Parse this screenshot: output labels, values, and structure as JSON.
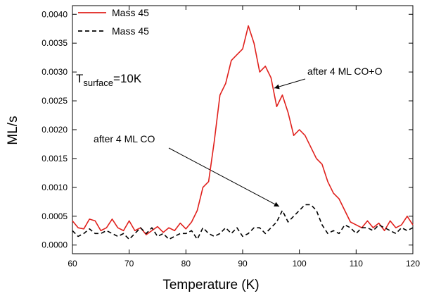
{
  "chart_data": {
    "type": "line",
    "x_label": "Temperature (K)",
    "y_label": "ML/s",
    "x": [
      60,
      61,
      62,
      63,
      64,
      65,
      66,
      67,
      68,
      69,
      70,
      71,
      72,
      73,
      74,
      75,
      76,
      77,
      78,
      79,
      80,
      81,
      82,
      83,
      84,
      85,
      86,
      87,
      88,
      89,
      90,
      91,
      92,
      93,
      94,
      95,
      96,
      97,
      98,
      99,
      100,
      101,
      102,
      103,
      104,
      105,
      106,
      107,
      108,
      109,
      110,
      111,
      112,
      113,
      114,
      115,
      116,
      117,
      118,
      119,
      120
    ],
    "series": [
      {
        "name": "Mass 45",
        "color": "#e0201c",
        "dash": false,
        "values": [
          0.00042,
          0.0003,
          0.00028,
          0.00045,
          0.00042,
          0.00025,
          0.0003,
          0.00045,
          0.0003,
          0.00025,
          0.00042,
          0.00025,
          0.0003,
          0.00018,
          0.00025,
          0.00032,
          0.00022,
          0.0003,
          0.00025,
          0.00038,
          0.00028,
          0.0004,
          0.0006,
          0.001,
          0.0011,
          0.0018,
          0.0026,
          0.0028,
          0.0032,
          0.0033,
          0.0034,
          0.0038,
          0.0035,
          0.003,
          0.0031,
          0.0029,
          0.0024,
          0.0026,
          0.0023,
          0.0019,
          0.002,
          0.0019,
          0.0017,
          0.0015,
          0.0014,
          0.0011,
          0.0009,
          0.0008,
          0.0006,
          0.0004,
          0.00035,
          0.0003,
          0.00042,
          0.0003,
          0.00038,
          0.00025,
          0.00042,
          0.0003,
          0.00035,
          0.0005,
          0.00035
        ]
      },
      {
        "name": "Mass 45",
        "color": "#000000",
        "dash": true,
        "values": [
          0.00025,
          0.00015,
          0.0002,
          0.00028,
          0.0002,
          0.0002,
          0.00025,
          0.0002,
          0.00015,
          0.0002,
          0.0001,
          0.0002,
          0.0003,
          0.0002,
          0.0003,
          0.00015,
          0.0002,
          0.0001,
          0.00015,
          0.0002,
          0.0002,
          0.00025,
          0.0001,
          0.0003,
          0.0002,
          0.00015,
          0.0002,
          0.0003,
          0.0002,
          0.0003,
          0.00015,
          0.0002,
          0.0003,
          0.0003,
          0.0002,
          0.0003,
          0.0004,
          0.0006,
          0.0004,
          0.0005,
          0.0006,
          0.0007,
          0.0007,
          0.0006,
          0.00035,
          0.0002,
          0.00025,
          0.0002,
          0.00035,
          0.0003,
          0.0002,
          0.0003,
          0.0003,
          0.00025,
          0.00035,
          0.0003,
          0.00025,
          0.0002,
          0.0003,
          0.00025,
          0.0003
        ]
      }
    ],
    "xlim": [
      60,
      120
    ],
    "xticks": [
      60,
      70,
      80,
      90,
      100,
      110,
      120
    ],
    "ylim": [
      -0.00015,
      0.00415
    ],
    "yticks": [
      {
        "value": 0,
        "label": "0.0000"
      },
      {
        "value": 0.0005,
        "label": "0.0005"
      },
      {
        "value": 0.001,
        "label": "0.0010"
      },
      {
        "value": 0.0015,
        "label": "0.0015"
      },
      {
        "value": 0.002,
        "label": "0.0020"
      },
      {
        "value": 0.0025,
        "label": "0.0025"
      },
      {
        "value": 0.003,
        "label": "0.0030"
      },
      {
        "value": 0.0035,
        "label": "0.0035"
      },
      {
        "value": 0.004,
        "label": "0.0040"
      }
    ],
    "legend": "upper left",
    "annotations": [
      "after 4 ML CO+O",
      "after 4 ML CO"
    ],
    "surface_label": {
      "main": "T",
      "subscript": "surface",
      "suffix": "=10K"
    }
  }
}
